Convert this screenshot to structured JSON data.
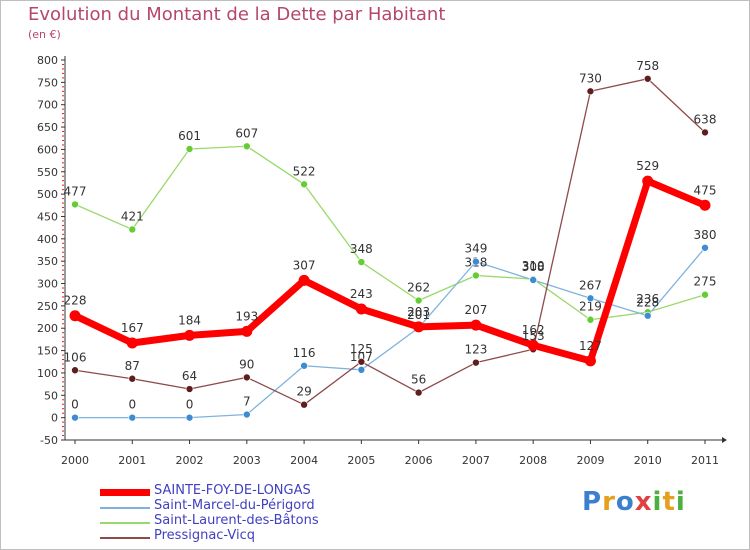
{
  "header": {
    "title": "Evolution du Montant de la Dette par Habitant",
    "unit": "(en €)"
  },
  "colors": {
    "title": "#b5476c",
    "axis": "#333333",
    "grid_red": "#e02020",
    "background": "#ffffff"
  },
  "logo": {
    "letters": [
      "P",
      "r",
      "o",
      "x",
      "i",
      "t",
      "i"
    ],
    "colors": [
      "#3a7fd0",
      "#e6a020",
      "#3a7fd0",
      "#e04040",
      "#4ab040",
      "#e6a020",
      "#4ab040"
    ]
  },
  "chart_data": {
    "type": "line",
    "title": "Evolution du Montant de la Dette par Habitant",
    "subtitle": "(en €)",
    "xlabel": "",
    "ylabel": "",
    "x": [
      "2000",
      "2001",
      "2002",
      "2003",
      "2004",
      "2005",
      "2006",
      "2007",
      "2008",
      "2009",
      "2010",
      "2011"
    ],
    "ylim": [
      -50,
      800
    ],
    "yticks": [
      "-50",
      "0",
      "50",
      "100",
      "150",
      "200",
      "250",
      "300",
      "350",
      "400",
      "450",
      "500",
      "550",
      "600",
      "650",
      "700",
      "750",
      "800"
    ],
    "yticks_values": [
      -50,
      0,
      50,
      100,
      150,
      200,
      250,
      300,
      350,
      400,
      450,
      500,
      550,
      600,
      650,
      700,
      750,
      800
    ],
    "grid": false,
    "legend": "bottom-left",
    "series": [
      {
        "name": "Saint-Laurent-des-Bâtons",
        "color": "#99d96b",
        "marker": "#66cc33",
        "label_color": "#333333",
        "width": 1.3,
        "values": [
          477,
          421,
          601,
          607,
          522,
          348,
          262,
          318,
          310,
          219,
          236,
          275
        ],
        "labels": [
          "477",
          "421",
          "601",
          "607",
          "522",
          "348",
          "262",
          "318",
          "310",
          "219",
          "236",
          "275"
        ]
      },
      {
        "name": "Saint-Marcel-du-Périgord",
        "color": "#7fb3df",
        "marker": "#3d8cd1",
        "label_color": "#333333",
        "width": 1.3,
        "values": [
          0,
          0,
          0,
          7,
          116,
          107,
          201,
          349,
          308,
          267,
          228,
          380
        ],
        "labels": [
          "0",
          "0",
          "0",
          "7",
          "116",
          "107",
          "201",
          "349",
          "308",
          "267",
          "228",
          "380"
        ]
      },
      {
        "name": "Pressignac-Vicq",
        "color": "#8c4a4a",
        "marker": "#5e1e1e",
        "label_color": "#333333",
        "width": 1.3,
        "values": [
          106,
          87,
          64,
          90,
          29,
          125,
          56,
          123,
          153,
          730,
          758,
          638
        ],
        "labels": [
          "106",
          "87",
          "64",
          "90",
          "29",
          "125",
          "56",
          "123",
          "153",
          "730",
          "758",
          "638"
        ]
      },
      {
        "name": "SAINTE-FOY-DE-LONGAS",
        "color": "#ff0000",
        "marker": "#ff0000",
        "label_color": "#333333",
        "width": 7,
        "values": [
          228,
          167,
          184,
          193,
          307,
          243,
          203,
          207,
          162,
          127,
          529,
          475
        ],
        "labels": [
          "228",
          "167",
          "184",
          "193",
          "307",
          "243",
          "203",
          "207",
          "162",
          "127",
          "529",
          "475"
        ]
      }
    ],
    "legend_order": [
      "SAINTE-FOY-DE-LONGAS",
      "Saint-Marcel-du-Périgord",
      "Saint-Laurent-des-Bâtons",
      "Pressignac-Vicq"
    ]
  }
}
